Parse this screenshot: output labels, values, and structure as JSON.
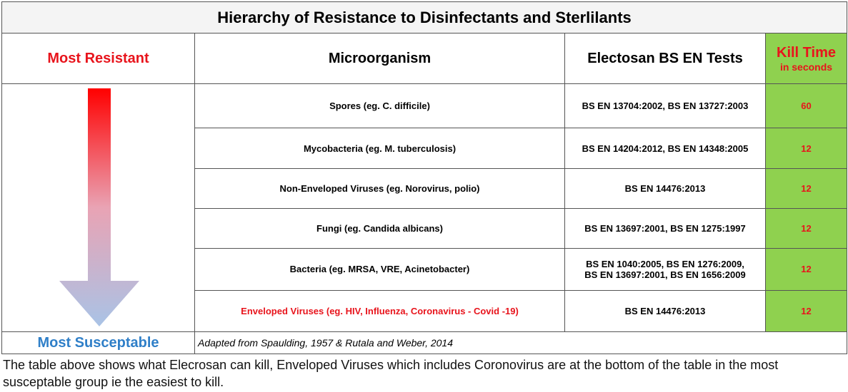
{
  "title": "Hierarchy of Resistance to Disinfectants and Sterlilants",
  "header": {
    "left": "Most Resistant",
    "microorganism": "Microorganism",
    "tests": "Electosan BS EN Tests",
    "kill_time": "Kill Time",
    "kill_unit": "in seconds"
  },
  "rows": [
    {
      "microorganism": "Spores (eg. C. difficile)",
      "tests": [
        "BS EN 13704:2002, BS EN 13727:2003"
      ],
      "kill_time": 60
    },
    {
      "microorganism": "Mycobacteria (eg. M. tuberculosis)",
      "tests": [
        "BS EN 14204:2012, BS EN 14348:2005"
      ],
      "kill_time": 12
    },
    {
      "microorganism": "Non-Enveloped Viruses (eg. Norovirus, polio)",
      "tests": [
        "BS EN 14476:2013"
      ],
      "kill_time": 12
    },
    {
      "microorganism": "Fungi (eg. Candida albicans)",
      "tests": [
        "BS EN 13697:2001, BS EN 1275:1997"
      ],
      "kill_time": 12
    },
    {
      "microorganism": "Bacteria (eg. MRSA, VRE, Acinetobacter)",
      "tests": [
        "BS EN 1040:2005, BS EN 1276:2009,",
        "BS EN 13697:2001, BS EN 1656:2009"
      ],
      "kill_time": 12
    },
    {
      "microorganism": "Enveloped Viruses (eg. HIV, Influenza, Coronavirus - Covid -19)",
      "tests": [
        "BS EN 14476:2013"
      ],
      "kill_time": 12
    }
  ],
  "footer": {
    "left": "Most Susceptable",
    "source": "Adapted from Spaulding, 1957 & Rutala and Weber, 2014"
  },
  "note": "The table above shows what Elecrosan can kill, Enveloped Viruses which includes Coronovirus are at the bottom of the table in the most susceptable group ie the easiest to kill."
}
